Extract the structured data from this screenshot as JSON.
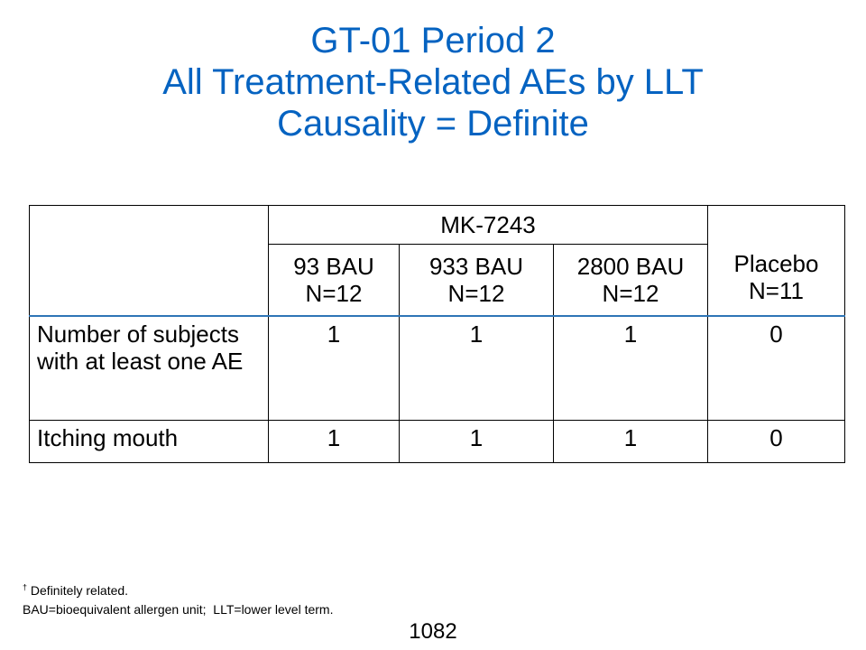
{
  "title": {
    "line1": "GT-01 Period 2",
    "line2": "All Treatment-Related AEs by LLT",
    "line3": "Causality = Definite"
  },
  "colors": {
    "title": "#0563c1",
    "header_rule": "#2e75b6"
  },
  "table": {
    "group_header": "MK-7243",
    "columns": [
      {
        "dose": "93 BAU",
        "n": "N=12"
      },
      {
        "dose": "933 BAU",
        "n": "N=12"
      },
      {
        "dose": "2800 BAU",
        "n": "N=12"
      }
    ],
    "placebo": {
      "label": "Placebo",
      "n": "N=11"
    },
    "rows": [
      {
        "label": "Number of subjects with at least one AE",
        "values": [
          "1",
          "1",
          "1",
          "0"
        ]
      },
      {
        "label": "Itching mouth",
        "values": [
          "1",
          "1",
          "1",
          "0"
        ]
      }
    ]
  },
  "footnotes": {
    "dagger": "†",
    "line1": "Definitely related.",
    "line2": "BAU=bioequivalent allergen unit;  LLT=lower level term."
  },
  "page_number": "1082"
}
